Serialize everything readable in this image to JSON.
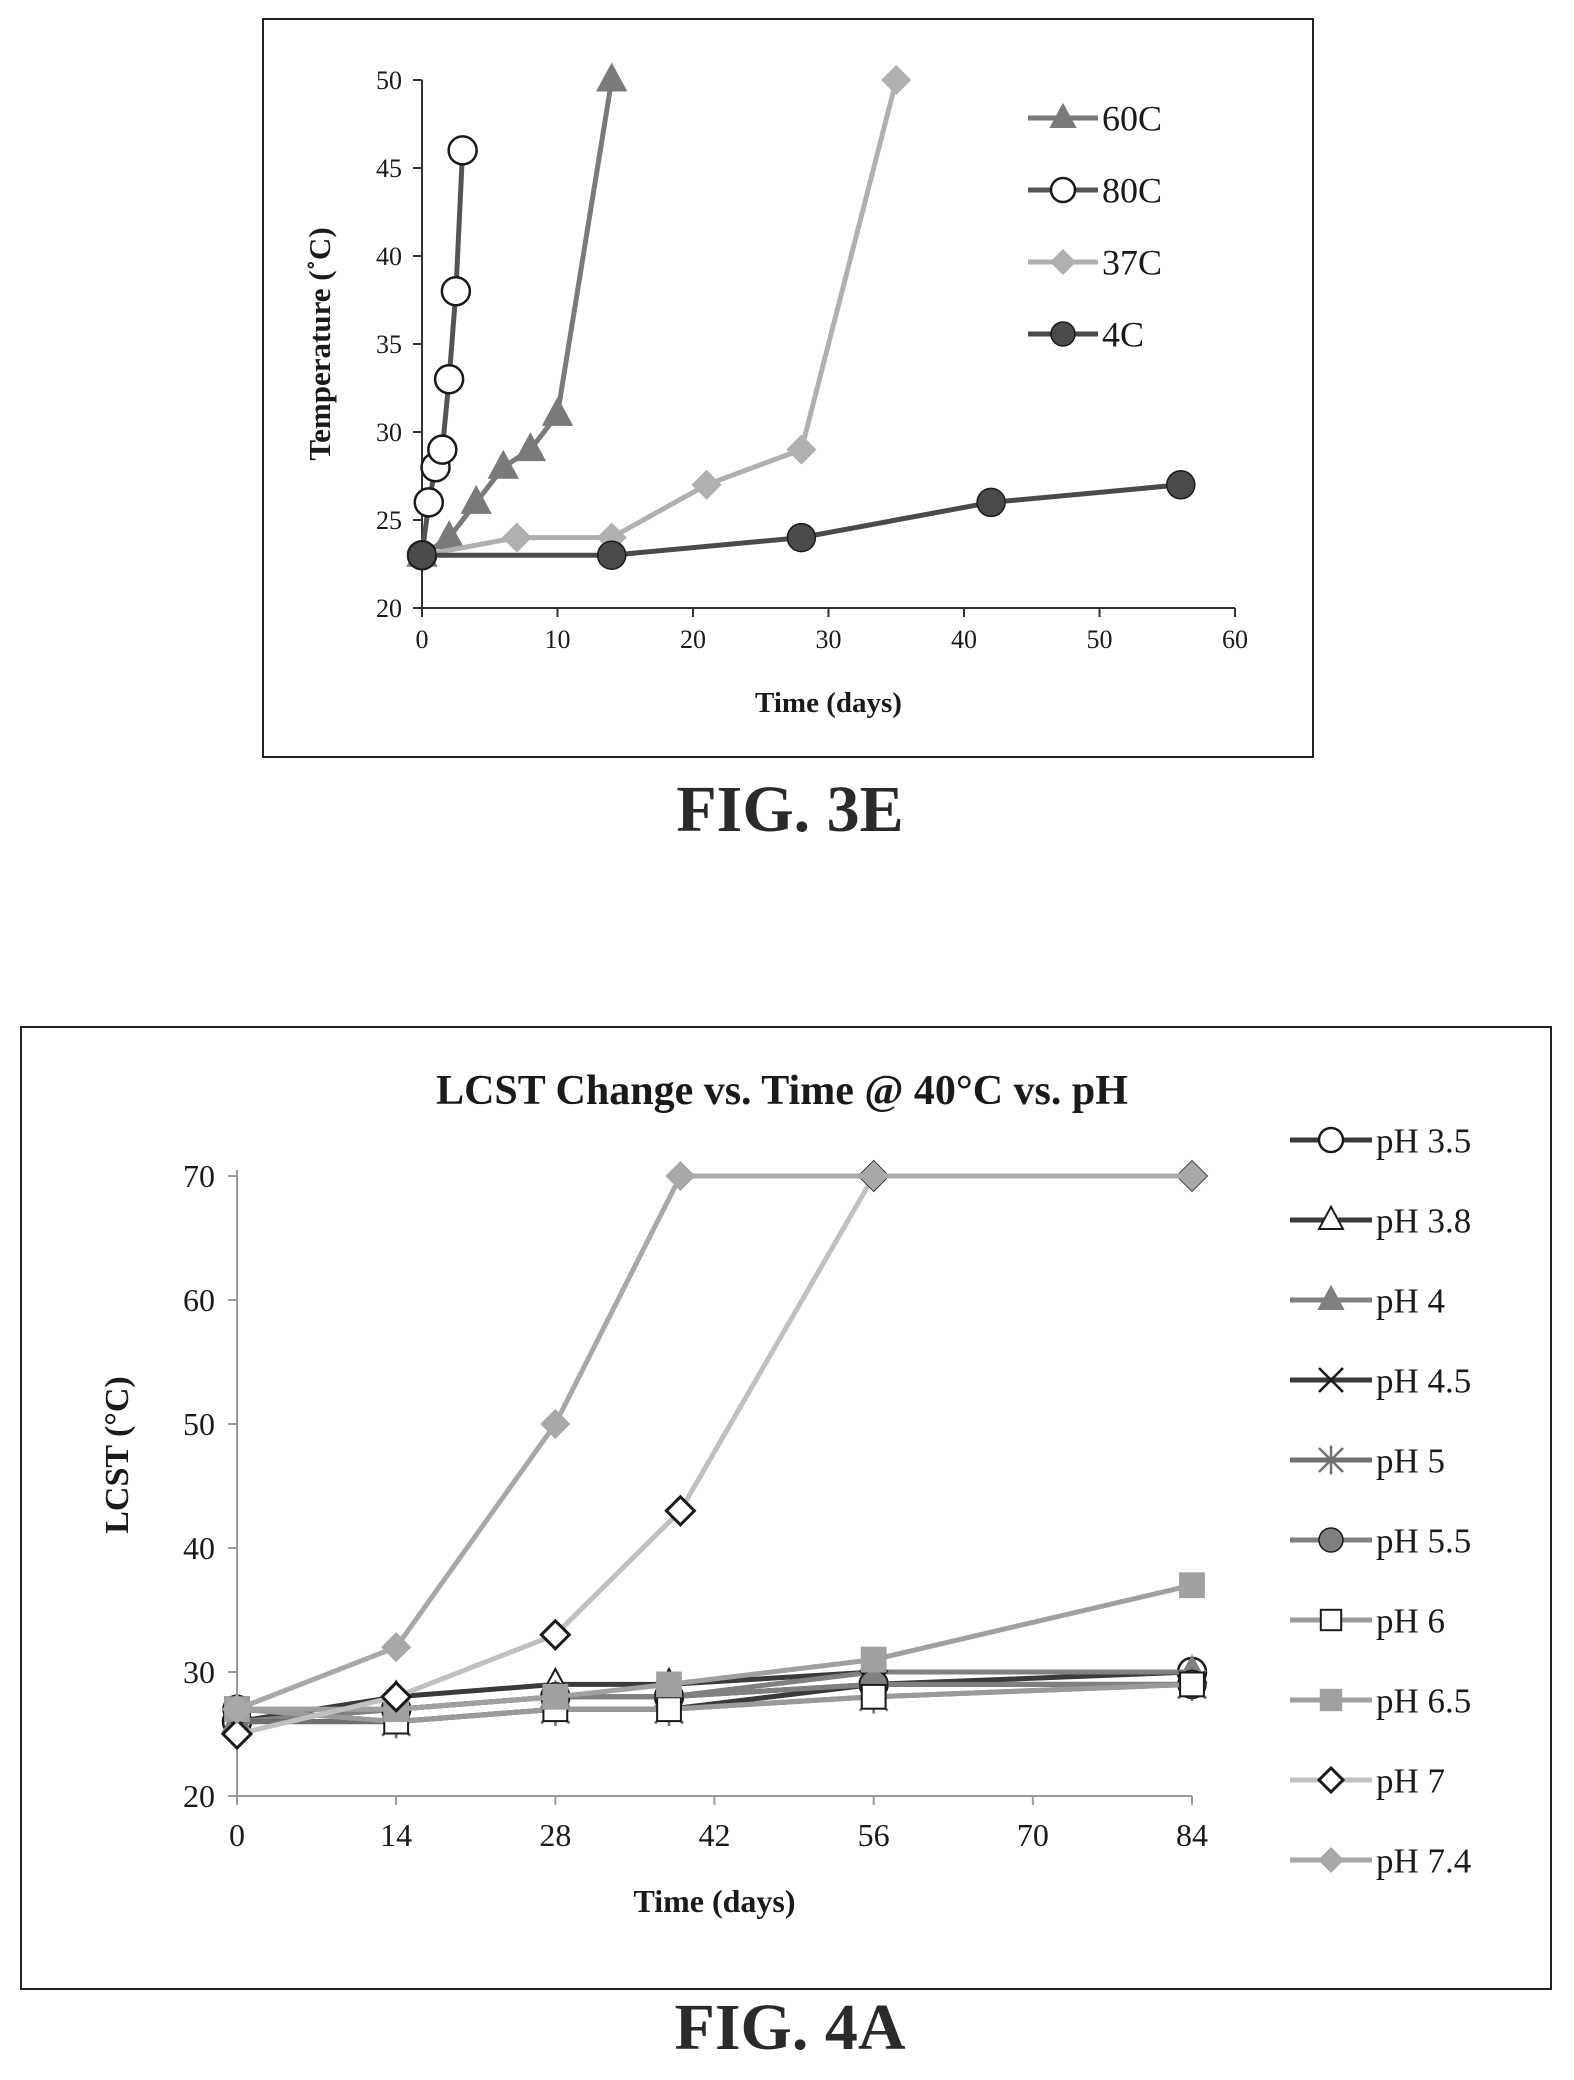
{
  "figure_3e": {
    "caption": "FIG. 3E"
  },
  "figure_4a": {
    "caption": "FIG. 4A"
  },
  "chart_data": [
    {
      "type": "line",
      "title": "",
      "xlabel": "Time (days)",
      "ylabel": "Temperature (˚C)",
      "xlim": [
        0,
        60
      ],
      "ylim": [
        20,
        50
      ],
      "xticks": [
        0,
        10,
        20,
        30,
        40,
        50,
        60
      ],
      "yticks": [
        20,
        25,
        30,
        35,
        40,
        45,
        50
      ],
      "grid": false,
      "legend_position": "top-right",
      "series": [
        {
          "name": "60C",
          "marker": "triangle-filled",
          "color": "#7a7a7a",
          "x": [
            0,
            2,
            4,
            6,
            8,
            10,
            14
          ],
          "y": [
            23,
            24,
            26,
            28,
            29,
            31,
            50
          ]
        },
        {
          "name": "80C",
          "marker": "circle-open",
          "color": "#555555",
          "x": [
            0,
            0.5,
            1,
            1.5,
            2,
            2.5,
            3
          ],
          "y": [
            23,
            26,
            28,
            29,
            33,
            38,
            46
          ]
        },
        {
          "name": "37C",
          "marker": "diamond-filled",
          "color": "#b0b0b0",
          "x": [
            0,
            7,
            14,
            21,
            28,
            35
          ],
          "y": [
            23,
            24,
            24,
            27,
            29,
            50
          ]
        },
        {
          "name": "4C",
          "marker": "circle-filled",
          "color": "#4a4a4a",
          "x": [
            0,
            14,
            28,
            42,
            56
          ],
          "y": [
            23,
            23,
            24,
            26,
            27
          ]
        }
      ]
    },
    {
      "type": "line",
      "title": "LCST Change vs. Time @ 40°C vs. pH",
      "xlabel": "Time (days)",
      "ylabel": "LCST (°C)",
      "xlim": [
        0,
        84
      ],
      "ylim": [
        20,
        75
      ],
      "xticks": [
        0,
        14,
        28,
        42,
        56,
        70,
        84
      ],
      "yticks": [
        20,
        30,
        40,
        50,
        60,
        70
      ],
      "grid": false,
      "legend_position": "right",
      "series": [
        {
          "name": "pH 3.5",
          "marker": "circle-open",
          "color": "#3a3a3a",
          "x": [
            0,
            14,
            28,
            38,
            56,
            84
          ],
          "y": [
            26,
            27,
            28,
            28,
            29,
            30
          ]
        },
        {
          "name": "pH 3.8",
          "marker": "triangle-open",
          "color": "#3a3a3a",
          "x": [
            0,
            14,
            28,
            38,
            56,
            84
          ],
          "y": [
            26,
            28,
            29,
            29,
            30,
            30
          ]
        },
        {
          "name": "pH 4",
          "marker": "triangle-filled",
          "color": "#808080",
          "x": [
            0,
            14,
            28,
            38,
            56,
            84
          ],
          "y": [
            26,
            27,
            28,
            28,
            30,
            30
          ]
        },
        {
          "name": "pH 4.5",
          "marker": "x",
          "color": "#3a3a3a",
          "x": [
            0,
            14,
            28,
            38,
            56,
            84
          ],
          "y": [
            26,
            26,
            27,
            27,
            29,
            29
          ]
        },
        {
          "name": "pH 5",
          "marker": "star",
          "color": "#707070",
          "x": [
            0,
            14,
            28,
            38,
            56,
            84
          ],
          "y": [
            26,
            26,
            27,
            27,
            28,
            29
          ]
        },
        {
          "name": "pH 5.5",
          "marker": "circle-filled",
          "color": "#808080",
          "x": [
            0,
            14,
            28,
            38,
            56,
            84
          ],
          "y": [
            27,
            27,
            28,
            28,
            29,
            29
          ]
        },
        {
          "name": "pH 6",
          "marker": "square-open",
          "color": "#9a9a9a",
          "x": [
            0,
            14,
            28,
            38,
            56,
            84
          ],
          "y": [
            27,
            26,
            27,
            27,
            28,
            29
          ]
        },
        {
          "name": "pH 6.5",
          "marker": "square-filled",
          "color": "#a0a0a0",
          "x": [
            0,
            14,
            28,
            38,
            56,
            84
          ],
          "y": [
            27,
            27,
            28,
            29,
            31,
            37
          ]
        },
        {
          "name": "pH 7",
          "marker": "diamond-open",
          "color": "#c0c0c0",
          "x": [
            0,
            14,
            28,
            39,
            56,
            84
          ],
          "y": [
            25,
            28,
            33,
            43,
            70,
            70
          ]
        },
        {
          "name": "pH 7.4",
          "marker": "diamond-filled",
          "color": "#a8a8a8",
          "x": [
            0,
            14,
            28,
            39,
            56,
            84
          ],
          "y": [
            27,
            32,
            50,
            70,
            70,
            70
          ]
        }
      ]
    }
  ]
}
